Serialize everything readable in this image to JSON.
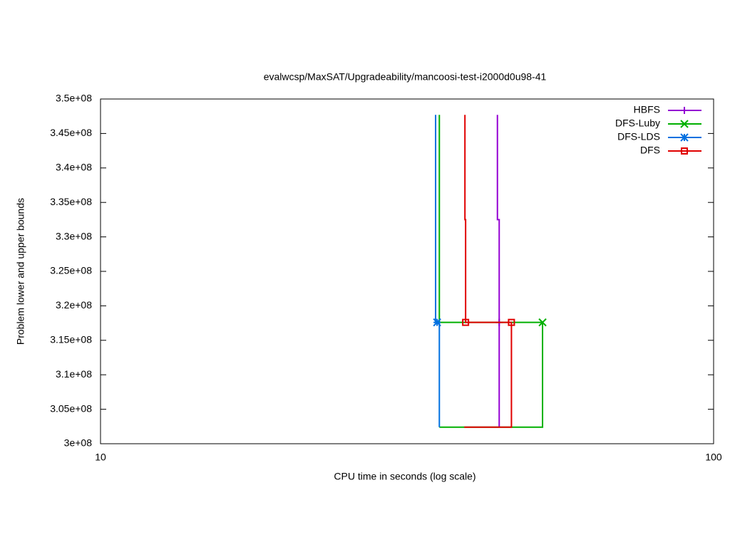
{
  "chart_data": {
    "type": "line",
    "title": "evalwcsp/MaxSAT/Upgradeability/mancoosi-test-i2000d0u98-41",
    "x_label": "CPU time in seconds (log scale)",
    "y_label": "Problem lower and upper bounds",
    "xscale": "log",
    "xlim": [
      10,
      100
    ],
    "xticks": [
      10,
      100
    ],
    "ylim": [
      300000000,
      350000000
    ],
    "yticks": [
      {
        "value": 300000000,
        "label": "3e+08"
      },
      {
        "value": 305000000,
        "label": "3.05e+08"
      },
      {
        "value": 310000000,
        "label": "3.1e+08"
      },
      {
        "value": 315000000,
        "label": "3.15e+08"
      },
      {
        "value": 320000000,
        "label": "3.2e+08"
      },
      {
        "value": 325000000,
        "label": "3.25e+08"
      },
      {
        "value": 330000000,
        "label": "3.3e+08"
      },
      {
        "value": 335000000,
        "label": "3.35e+08"
      },
      {
        "value": 340000000,
        "label": "3.4e+08"
      },
      {
        "value": 345000000,
        "label": "3.45e+08"
      },
      {
        "value": 350000000,
        "label": "3.5e+08"
      }
    ],
    "legend": "upper-right",
    "series": [
      {
        "name": "HBFS",
        "color": "#9400d3",
        "marker": "plus",
        "x": [
          44.4,
          44.4,
          44.7,
          44.7
        ],
        "y": [
          347700000,
          332500000,
          332500000,
          302400000
        ],
        "points": {
          "x": [
            44.7
          ],
          "y": [
            317600000
          ]
        }
      },
      {
        "name": "DFS-Luby",
        "color": "#00b000",
        "marker": "cross",
        "x": [
          35.7,
          35.7,
          52.6,
          52.6,
          35.7
        ],
        "y": [
          347700000,
          317600000,
          317600000,
          302400000,
          302400000
        ],
        "points": {
          "x": [
            52.6
          ],
          "y": [
            317600000
          ]
        }
      },
      {
        "name": "DFS-LDS",
        "color": "#0070e0",
        "marker": "star",
        "x": [
          35.2,
          35.2,
          35.7,
          35.7
        ],
        "y": [
          347700000,
          317600000,
          317600000,
          302400000
        ],
        "points": {
          "x": [
            35.4
          ],
          "y": [
            317600000
          ]
        }
      },
      {
        "name": "DFS",
        "color": "#e00000",
        "marker": "square",
        "x": [
          39.3,
          39.3,
          39.4,
          39.4,
          46.8,
          46.8,
          39.2
        ],
        "y": [
          347700000,
          332500000,
          332500000,
          317600000,
          317600000,
          302400000,
          302400000
        ],
        "points": {
          "x": [
            39.4,
            46.8
          ],
          "y": [
            317600000,
            317600000
          ]
        }
      }
    ]
  }
}
